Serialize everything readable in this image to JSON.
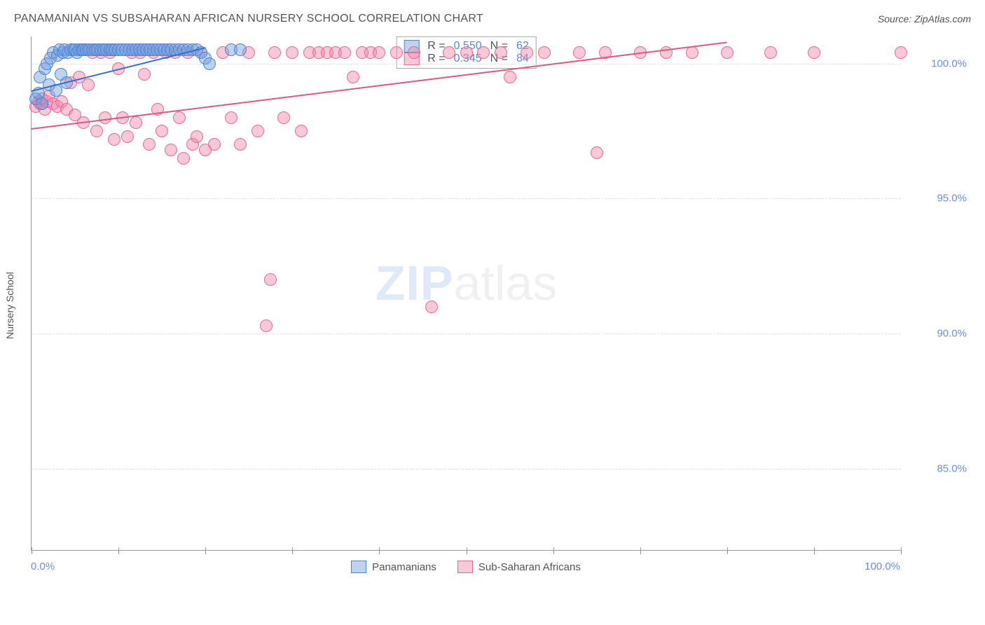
{
  "title": "PANAMANIAN VS SUBSAHARAN AFRICAN NURSERY SCHOOL CORRELATION CHART",
  "source": "Source: ZipAtlas.com",
  "ylabel": "Nursery School",
  "watermark": {
    "left": "ZIP",
    "right": "atlas"
  },
  "colors": {
    "series1_fill": "rgba(111,158,225,0.45)",
    "series1_stroke": "#4f86d1",
    "series2_fill": "rgba(243,133,166,0.45)",
    "series2_stroke": "#e46b93",
    "trend1": "#2f6fcf",
    "trend2": "#e0567f",
    "tick_text": "#6a8fd8",
    "grid": "#dddddd"
  },
  "chart": {
    "type": "scatter",
    "xlim": [
      0,
      100
    ],
    "ylim": [
      82,
      101
    ],
    "yticks": [
      {
        "v": 100,
        "label": "100.0%"
      },
      {
        "v": 95,
        "label": "95.0%"
      },
      {
        "v": 90,
        "label": "90.0%"
      },
      {
        "v": 85,
        "label": "85.0%"
      }
    ],
    "xtick_positions": [
      0,
      10,
      20,
      30,
      40,
      50,
      60,
      70,
      80,
      90,
      100
    ],
    "xlabels": [
      {
        "v": 0,
        "label": "0.0%"
      },
      {
        "v": 100,
        "label": "100.0%"
      }
    ],
    "marker_radius": 9
  },
  "stats_box": {
    "rows": [
      {
        "swatch": "series1",
        "R_label": "R =",
        "R": "0.550",
        "N_label": "N =",
        "N": "62"
      },
      {
        "swatch": "series2",
        "R_label": "R =",
        "R": "0.345",
        "N_label": "N =",
        "N": "84"
      }
    ]
  },
  "bottom_legend": [
    {
      "swatch": "series1",
      "label": "Panamanians"
    },
    {
      "swatch": "series2",
      "label": "Sub-Saharan Africans"
    }
  ],
  "trend_lines": {
    "series1": {
      "x1": 0,
      "y1": 99.0,
      "x2": 20,
      "y2": 100.6
    },
    "series2": {
      "x1": 0,
      "y1": 97.6,
      "x2": 80,
      "y2": 100.8
    }
  },
  "series1_points": [
    [
      0.5,
      98.7
    ],
    [
      0.8,
      98.9
    ],
    [
      1.0,
      99.5
    ],
    [
      1.2,
      98.5
    ],
    [
      1.5,
      99.8
    ],
    [
      1.8,
      100
    ],
    [
      2.0,
      99.2
    ],
    [
      2.2,
      100.2
    ],
    [
      2.5,
      100.4
    ],
    [
      2.8,
      99.0
    ],
    [
      3.0,
      100.3
    ],
    [
      3.2,
      100.5
    ],
    [
      3.4,
      99.6
    ],
    [
      3.6,
      100.4
    ],
    [
      3.8,
      100.5
    ],
    [
      4.0,
      99.3
    ],
    [
      4.2,
      100.4
    ],
    [
      4.5,
      100.5
    ],
    [
      4.8,
      100.5
    ],
    [
      5.0,
      100.5
    ],
    [
      5.2,
      100.4
    ],
    [
      5.5,
      100.5
    ],
    [
      5.8,
      100.5
    ],
    [
      6.0,
      100.5
    ],
    [
      6.3,
      100.5
    ],
    [
      6.6,
      100.5
    ],
    [
      7.0,
      100.5
    ],
    [
      7.3,
      100.5
    ],
    [
      7.6,
      100.5
    ],
    [
      8.0,
      100.5
    ],
    [
      8.3,
      100.5
    ],
    [
      8.6,
      100.5
    ],
    [
      9.0,
      100.5
    ],
    [
      9.3,
      100.5
    ],
    [
      9.6,
      100.5
    ],
    [
      10.0,
      100.5
    ],
    [
      10.4,
      100.5
    ],
    [
      10.8,
      100.5
    ],
    [
      11.2,
      100.5
    ],
    [
      11.6,
      100.5
    ],
    [
      12.0,
      100.5
    ],
    [
      12.4,
      100.5
    ],
    [
      12.8,
      100.5
    ],
    [
      13.2,
      100.5
    ],
    [
      13.6,
      100.5
    ],
    [
      14.0,
      100.5
    ],
    [
      14.4,
      100.5
    ],
    [
      14.8,
      100.5
    ],
    [
      15.2,
      100.5
    ],
    [
      15.6,
      100.5
    ],
    [
      16.0,
      100.5
    ],
    [
      16.5,
      100.5
    ],
    [
      17.0,
      100.5
    ],
    [
      17.5,
      100.5
    ],
    [
      18.0,
      100.5
    ],
    [
      18.5,
      100.5
    ],
    [
      19.0,
      100.5
    ],
    [
      19.5,
      100.4
    ],
    [
      20.0,
      100.2
    ],
    [
      20.5,
      100.0
    ],
    [
      23.0,
      100.5
    ],
    [
      24.0,
      100.5
    ]
  ],
  "series2_points": [
    [
      0.5,
      98.4
    ],
    [
      0.8,
      98.6
    ],
    [
      1.0,
      98.5
    ],
    [
      1.2,
      98.7
    ],
    [
      1.5,
      98.3
    ],
    [
      1.8,
      98.6
    ],
    [
      2.0,
      98.8
    ],
    [
      2.5,
      98.5
    ],
    [
      3.0,
      98.4
    ],
    [
      3.5,
      98.6
    ],
    [
      4.0,
      98.3
    ],
    [
      4.5,
      99.3
    ],
    [
      5.0,
      98.1
    ],
    [
      5.5,
      99.5
    ],
    [
      6.0,
      97.8
    ],
    [
      6.5,
      99.2
    ],
    [
      7.0,
      100.4
    ],
    [
      7.5,
      97.5
    ],
    [
      8.0,
      100.4
    ],
    [
      8.5,
      98.0
    ],
    [
      9.0,
      100.4
    ],
    [
      9.5,
      97.2
    ],
    [
      10.0,
      99.8
    ],
    [
      10.5,
      98.0
    ],
    [
      11.0,
      97.3
    ],
    [
      11.5,
      100.4
    ],
    [
      12.0,
      97.8
    ],
    [
      12.5,
      100.4
    ],
    [
      13.0,
      99.6
    ],
    [
      13.5,
      97.0
    ],
    [
      14.0,
      100.4
    ],
    [
      14.5,
      98.3
    ],
    [
      15.0,
      97.5
    ],
    [
      15.5,
      100.4
    ],
    [
      16.0,
      96.8
    ],
    [
      16.5,
      100.4
    ],
    [
      17.0,
      98.0
    ],
    [
      17.5,
      96.5
    ],
    [
      18.0,
      100.4
    ],
    [
      18.5,
      97.0
    ],
    [
      19.0,
      97.3
    ],
    [
      19.5,
      100.4
    ],
    [
      20.0,
      96.8
    ],
    [
      21.0,
      97.0
    ],
    [
      22.0,
      100.4
    ],
    [
      23.0,
      98.0
    ],
    [
      24.0,
      97.0
    ],
    [
      25.0,
      100.4
    ],
    [
      26.0,
      97.5
    ],
    [
      27.0,
      90.3
    ],
    [
      27.5,
      92.0
    ],
    [
      28.0,
      100.4
    ],
    [
      29.0,
      98.0
    ],
    [
      30.0,
      100.4
    ],
    [
      31.0,
      97.5
    ],
    [
      32.0,
      100.4
    ],
    [
      33.0,
      100.4
    ],
    [
      34.0,
      100.4
    ],
    [
      35.0,
      100.4
    ],
    [
      36.0,
      100.4
    ],
    [
      37.0,
      99.5
    ],
    [
      38.0,
      100.4
    ],
    [
      39.0,
      100.4
    ],
    [
      40.0,
      100.4
    ],
    [
      42.0,
      100.4
    ],
    [
      44.0,
      100.4
    ],
    [
      46.0,
      91.0
    ],
    [
      48.0,
      100.4
    ],
    [
      50.0,
      100.4
    ],
    [
      52.0,
      100.4
    ],
    [
      54.0,
      100.4
    ],
    [
      55.0,
      99.5
    ],
    [
      57.0,
      100.4
    ],
    [
      59.0,
      100.4
    ],
    [
      63.0,
      100.4
    ],
    [
      65.0,
      96.7
    ],
    [
      66.0,
      100.4
    ],
    [
      70.0,
      100.4
    ],
    [
      73.0,
      100.4
    ],
    [
      76.0,
      100.4
    ],
    [
      80.0,
      100.4
    ],
    [
      85.0,
      100.4
    ],
    [
      90.0,
      100.4
    ],
    [
      100.0,
      100.4
    ]
  ]
}
